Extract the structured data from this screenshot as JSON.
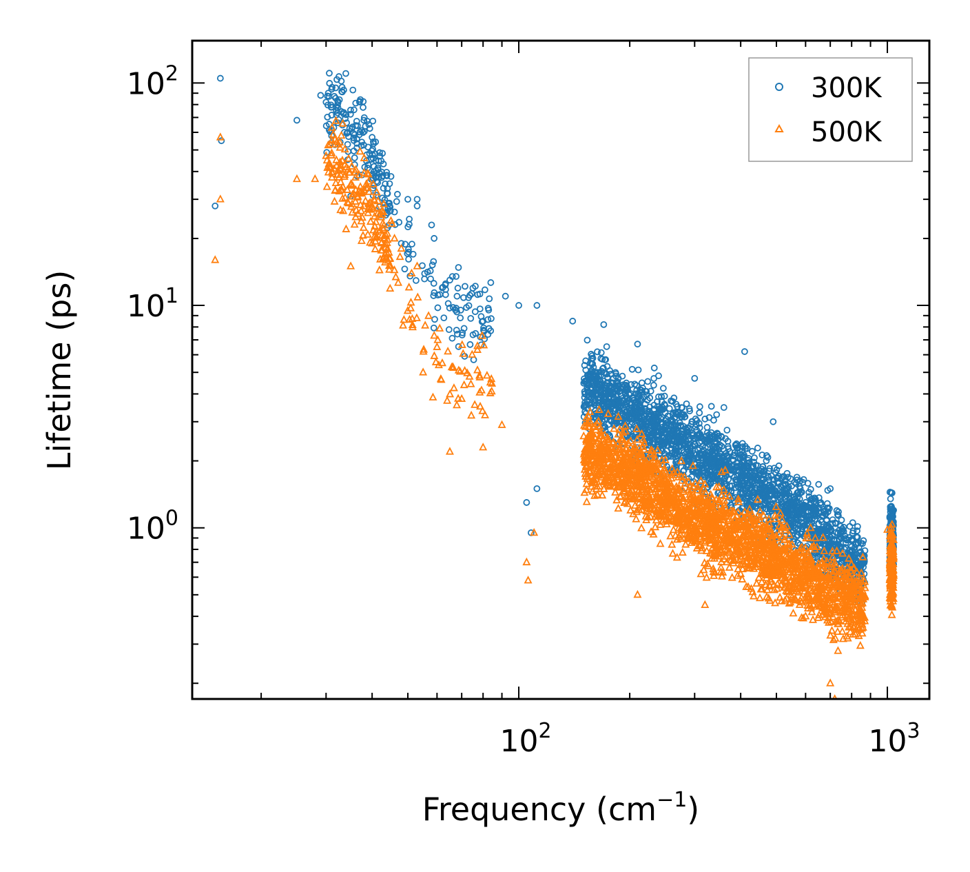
{
  "chart_data": {
    "type": "scatter",
    "title": "",
    "xlabel": "Frequency (cm",
    "xlabel_sup": "−1",
    "xlabel_end": ")",
    "ylabel": "Lifetime (ps)",
    "xscale": "log",
    "yscale": "log",
    "xlim": [
      13,
      1300
    ],
    "ylim": [
      0.17,
      155
    ],
    "x_ticks": [
      {
        "base": "10",
        "exp": "2",
        "value": 100
      },
      {
        "base": "10",
        "exp": "3",
        "value": 1000
      }
    ],
    "y_ticks": [
      {
        "base": "10",
        "exp": "0",
        "value": 1
      },
      {
        "base": "10",
        "exp": "1",
        "value": 10
      },
      {
        "base": "10",
        "exp": "2",
        "value": 100
      }
    ],
    "legend_position": "top-right",
    "series": [
      {
        "name": "300K",
        "marker": "circle",
        "color": "#1f77b4",
        "trend": {
          "anchors": [
            [
              15,
              40
            ],
            [
              25,
              68
            ],
            [
              32,
              75
            ],
            [
              38,
              55
            ],
            [
              42,
              38
            ],
            [
              48,
              22
            ],
            [
              55,
              13
            ],
            [
              70,
              9.5
            ],
            [
              100,
              7
            ],
            [
              150,
              4.5
            ],
            [
              200,
              3.3
            ],
            [
              300,
              2.2
            ],
            [
              400,
              1.7
            ],
            [
              600,
              1.1
            ],
            [
              850,
              0.65
            ],
            [
              1000,
              0.9
            ]
          ]
        },
        "scatter_sigma": 0.22,
        "points_shown": [
          [
            15.5,
            105
          ],
          [
            15,
            28
          ],
          [
            15.6,
            55
          ],
          [
            25,
            68
          ],
          [
            29,
            88
          ],
          [
            30,
            82
          ],
          [
            31,
            78
          ],
          [
            32,
            72
          ],
          [
            33,
            102
          ],
          [
            33.5,
            93
          ],
          [
            34,
            72
          ],
          [
            35,
            31
          ],
          [
            38,
            68
          ],
          [
            40,
            57
          ],
          [
            42,
            47
          ],
          [
            45,
            38
          ],
          [
            48,
            19
          ],
          [
            50,
            30
          ],
          [
            53,
            30
          ],
          [
            53,
            28
          ],
          [
            58,
            23
          ],
          [
            62,
            12
          ],
          [
            65,
            13
          ],
          [
            68,
            11
          ],
          [
            80,
            8.5
          ],
          [
            92,
            11
          ],
          [
            100,
            10
          ],
          [
            112,
            10
          ],
          [
            140,
            8.5
          ],
          [
            170,
            8.2
          ],
          [
            210,
            6.7
          ],
          [
            300,
            4.7
          ],
          [
            410,
            6.2
          ],
          [
            490,
            3
          ],
          [
            560,
            1.6
          ],
          [
            700,
            1.5
          ],
          [
            1020,
            1.35
          ],
          [
            1030,
            0.5
          ],
          [
            105,
            1.3
          ],
          [
            108,
            0.95
          ],
          [
            112,
            1.5
          ]
        ]
      },
      {
        "name": "500K",
        "marker": "triangle",
        "color": "#ff7f0e",
        "trend": {
          "anchors": [
            [
              15,
              20
            ],
            [
              25,
              38
            ],
            [
              32,
              42
            ],
            [
              38,
              30
            ],
            [
              42,
              22
            ],
            [
              48,
              13
            ],
            [
              55,
              8
            ],
            [
              60,
              5.5
            ],
            [
              70,
              5
            ],
            [
              100,
              3.5
            ],
            [
              150,
              2.2
            ],
            [
              200,
              1.8
            ],
            [
              300,
              1.1
            ],
            [
              400,
              0.9
            ],
            [
              600,
              0.6
            ],
            [
              850,
              0.45
            ],
            [
              1000,
              0.65
            ]
          ]
        },
        "scatter_sigma": 0.22,
        "points_shown": [
          [
            15.5,
            57
          ],
          [
            15.5,
            30
          ],
          [
            15,
            16
          ],
          [
            25,
            37
          ],
          [
            28,
            37
          ],
          [
            30,
            47
          ],
          [
            32,
            45
          ],
          [
            33,
            58
          ],
          [
            34,
            22
          ],
          [
            35,
            15
          ],
          [
            38,
            33
          ],
          [
            40,
            19
          ],
          [
            45,
            24
          ],
          [
            46,
            20
          ],
          [
            48,
            18
          ],
          [
            53,
            15
          ],
          [
            55,
            5
          ],
          [
            60,
            6.5
          ],
          [
            62,
            5.5
          ],
          [
            65,
            2.2
          ],
          [
            70,
            3.8
          ],
          [
            80,
            2.3
          ],
          [
            90,
            2.9
          ],
          [
            105,
            0.7
          ],
          [
            106,
            0.58
          ],
          [
            110,
            0.95
          ],
          [
            210,
            0.5
          ],
          [
            320,
            0.45
          ],
          [
            400,
            0.62
          ],
          [
            480,
            0.47
          ],
          [
            600,
            0.4
          ],
          [
            700,
            0.2
          ],
          [
            720,
            0.17
          ],
          [
            1000,
            0.98
          ],
          [
            1020,
            0.48
          ]
        ]
      }
    ]
  }
}
